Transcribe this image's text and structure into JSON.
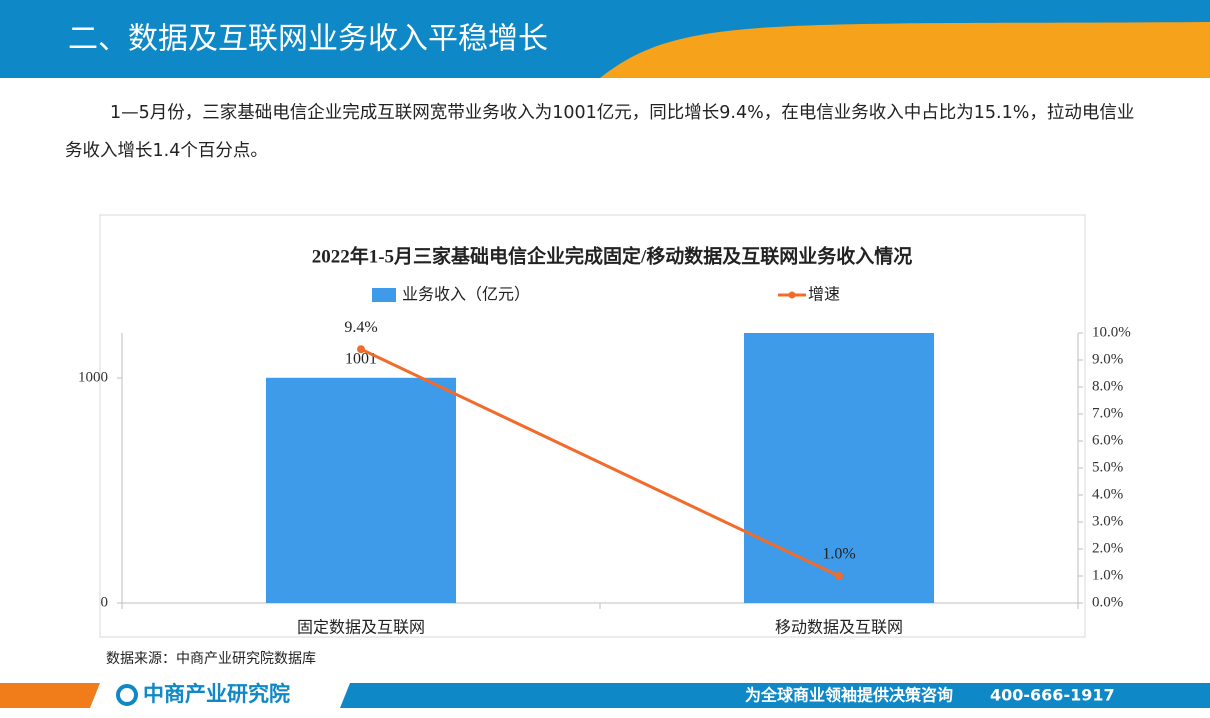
{
  "header": {
    "title": "二、数据及互联网业务收入平稳增长"
  },
  "paragraph": "1—5月份，三家基础电信企业完成互联网宽带业务收入为1001亿元，同比增长9.4%，在电信业务收入中占比为15.1%，拉动电信业务收入增长1.4个百分点。",
  "chart_data": {
    "type": "bar",
    "title": "2022年1-5月三家基础电信企业完成固定/移动数据及互联网业务收入情况",
    "categories": [
      "固定数据及互联网",
      "移动数据及互联网"
    ],
    "series": [
      {
        "name": "业务收入（亿元）",
        "type": "bar",
        "color": "#3d9be9",
        "values": [
          1001,
          1200
        ],
        "value_labels": [
          "1001",
          null
        ]
      },
      {
        "name": "增速",
        "type": "line",
        "axis": "y2",
        "color": "#f26b2a",
        "values": [
          9.4,
          1.0
        ],
        "value_labels": [
          "9.4%",
          "1.0%"
        ]
      }
    ],
    "ylim": [
      0,
      1200
    ],
    "yticks": [
      0,
      1000
    ],
    "y2lim": [
      0,
      10
    ],
    "y2ticks": [
      {
        "value": 0,
        "label": "0.0%"
      },
      {
        "value": 1,
        "label": "1.0%"
      },
      {
        "value": 2,
        "label": "2.0%"
      },
      {
        "value": 3,
        "label": "3.0%"
      },
      {
        "value": 4,
        "label": "4.0%"
      },
      {
        "value": 5,
        "label": "5.0%"
      },
      {
        "value": 6,
        "label": "6.0%"
      },
      {
        "value": 7,
        "label": "7.0%"
      },
      {
        "value": 8,
        "label": "8.0%"
      },
      {
        "value": 9,
        "label": "9.0%"
      },
      {
        "value": 10,
        "label": "10.0%"
      }
    ],
    "legend": "top"
  },
  "source": "数据来源：中商产业研究院数据库",
  "footer": {
    "brand": "中商产业研究院",
    "slogan": "为全球商业领袖提供决策咨询",
    "phone": "400-666-1917"
  }
}
